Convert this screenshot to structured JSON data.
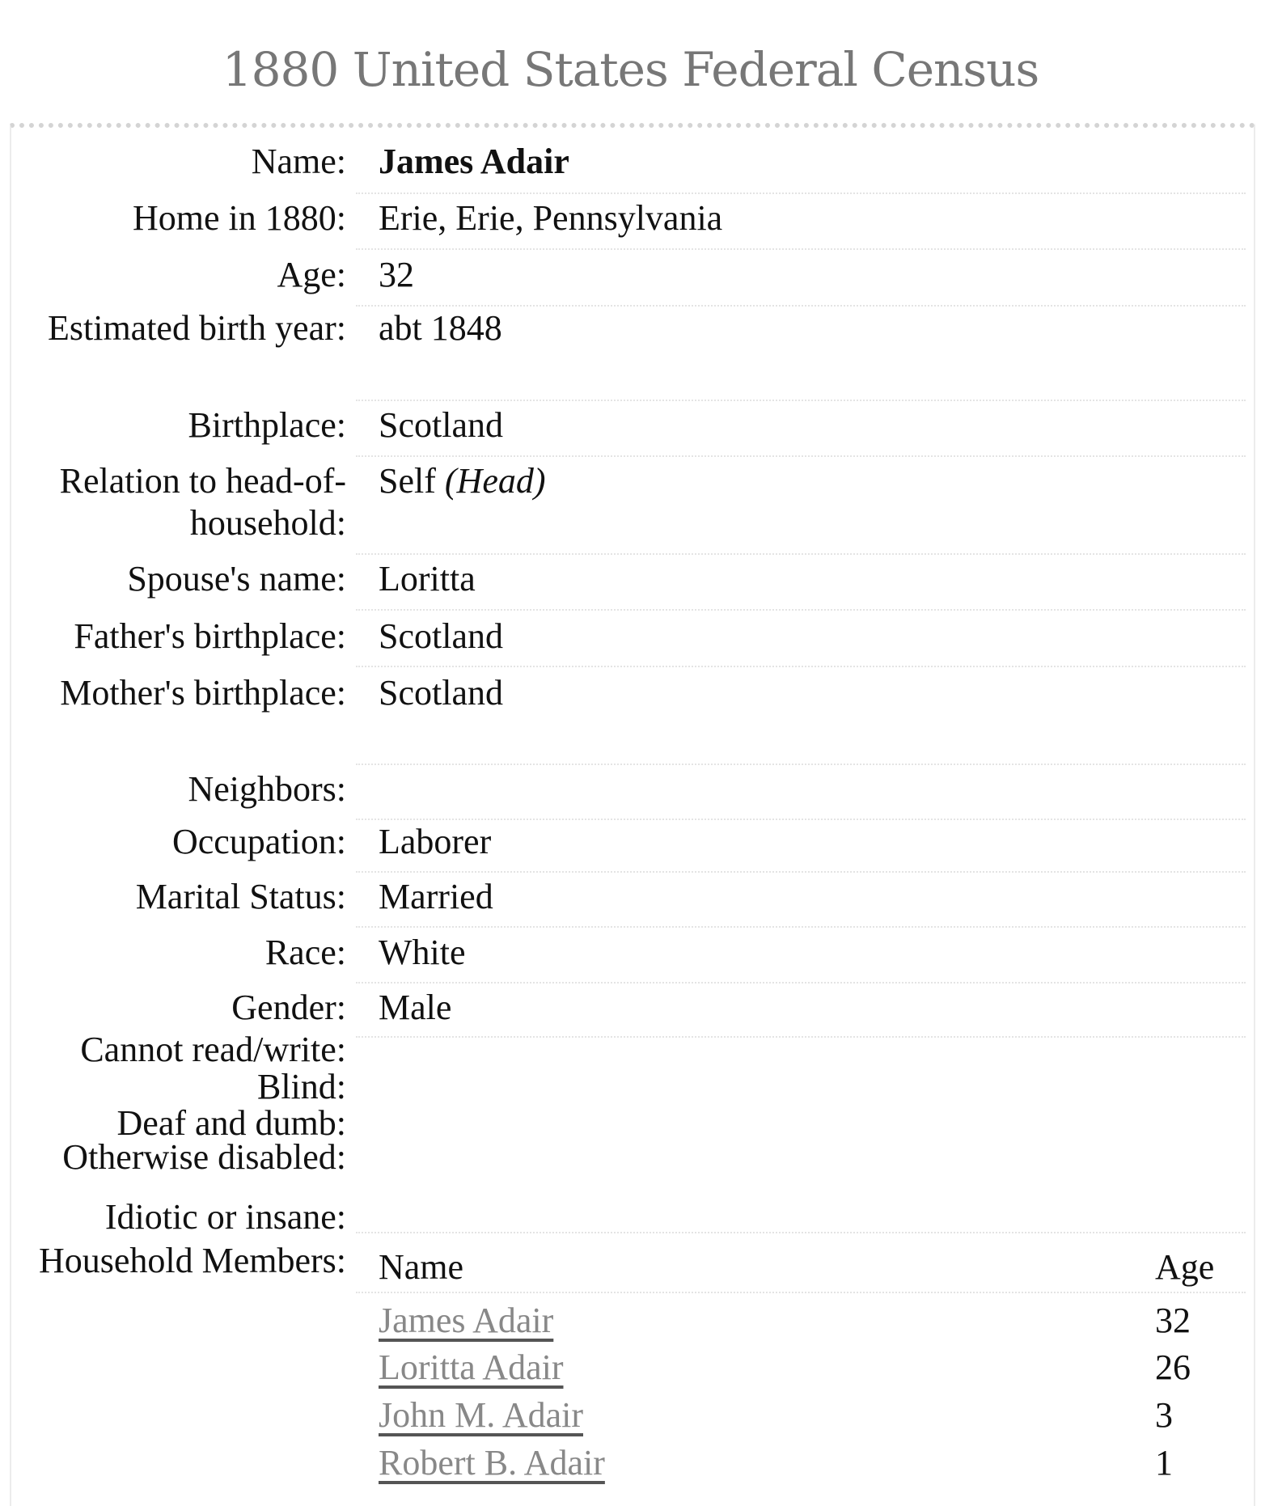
{
  "title": "1880 United States Federal Census",
  "fields": [
    {
      "label": "Name:",
      "value": "James Adair",
      "bold": true
    },
    {
      "label": "Home in 1880:",
      "value": "Erie, Erie, Pennsylvania"
    },
    {
      "label": "Age:",
      "value": "32"
    },
    {
      "label": "Estimated birth year:",
      "value": "abt 1848"
    },
    {
      "label": "Birthplace:",
      "value": "Scotland"
    },
    {
      "label": "Relation to head-of-household:",
      "value": "Self",
      "value_note": "(Head)"
    },
    {
      "label": "Spouse's name:",
      "value": "Loritta"
    },
    {
      "label": "Father's birthplace:",
      "value": "Scotland"
    },
    {
      "label": "Mother's birthplace:",
      "value": "Scotland"
    },
    {
      "label": "Neighbors:",
      "value": ""
    },
    {
      "label": "Occupation:",
      "value": "Laborer"
    },
    {
      "label": "Marital Status:",
      "value": "Married"
    },
    {
      "label": "Race:",
      "value": "White"
    },
    {
      "label": "Gender:",
      "value": "Male"
    },
    {
      "label": "Cannot read/write:",
      "value": ""
    },
    {
      "label": "Blind:",
      "value": ""
    },
    {
      "label": "Deaf and dumb:",
      "value": ""
    },
    {
      "label": "Otherwise disabled:",
      "value": ""
    },
    {
      "label": "Idiotic or insane:",
      "value": ""
    }
  ],
  "household": {
    "label": "Household Members:",
    "columns": {
      "name": "Name",
      "age": "Age"
    },
    "members": [
      {
        "name": "James Adair",
        "age": "32"
      },
      {
        "name": "Loritta Adair",
        "age": "26"
      },
      {
        "name": "John M. Adair",
        "age": "3"
      },
      {
        "name": "Robert B. Adair",
        "age": "1"
      }
    ]
  }
}
